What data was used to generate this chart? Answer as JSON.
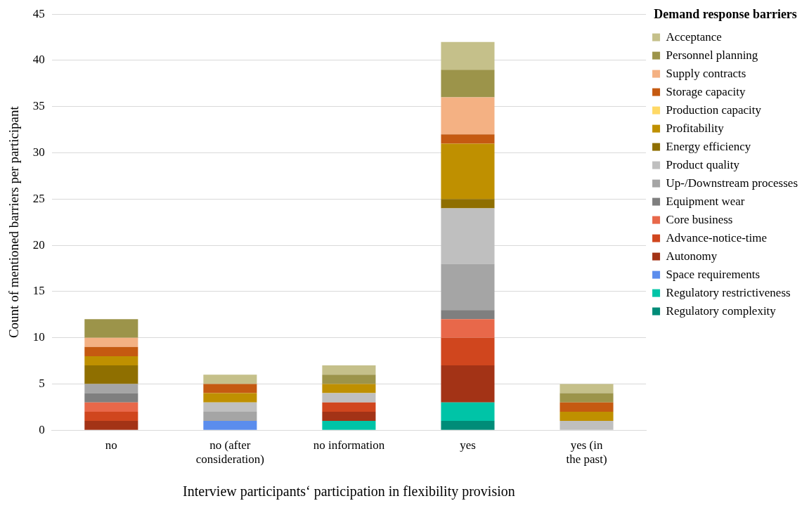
{
  "chart_data": {
    "type": "bar",
    "stacked": true,
    "xlabel": "Interview participants‘ participation in flexibility provision",
    "ylabel": "Count of mentioned barriers per participant",
    "legend_title": "Demand response barriers",
    "legend": "right",
    "grid": "y",
    "categories": [
      "no",
      "no (after consideration)",
      "no information",
      "yes",
      "yes (in the past)"
    ],
    "ylim": [
      0,
      45
    ],
    "yticks": [
      0,
      5,
      10,
      15,
      20,
      25,
      30,
      35,
      40,
      45
    ],
    "series": [
      {
        "name": "Regulatory complexity",
        "color": "#008c78",
        "values": [
          0,
          0,
          0,
          1,
          0
        ]
      },
      {
        "name": "Regulatory restrictiveness",
        "color": "#00c4a7",
        "values": [
          0,
          0,
          1,
          2,
          0
        ]
      },
      {
        "name": "Space requirements",
        "color": "#5b8ded",
        "values": [
          0,
          1,
          0,
          0,
          0
        ]
      },
      {
        "name": "Autonomy",
        "color": "#a33316",
        "values": [
          1,
          0,
          1,
          4,
          0
        ]
      },
      {
        "name": "Advance-notice-time",
        "color": "#d0461e",
        "values": [
          1,
          0,
          1,
          3,
          0
        ]
      },
      {
        "name": "Core business",
        "color": "#e8684a",
        "values": [
          1,
          0,
          0,
          2,
          0
        ]
      },
      {
        "name": "Equipment wear",
        "color": "#7f7f7f",
        "values": [
          1,
          0,
          0,
          1,
          0
        ]
      },
      {
        "name": "Up-/Downstream processes",
        "color": "#a5a5a5",
        "values": [
          1,
          1,
          0,
          5,
          0
        ]
      },
      {
        "name": "Product quality",
        "color": "#bfbfbf",
        "values": [
          0,
          1,
          1,
          6,
          1
        ]
      },
      {
        "name": "Energy efficiency",
        "color": "#8f6f00",
        "values": [
          2,
          0,
          0,
          1,
          0
        ]
      },
      {
        "name": "Profitability",
        "color": "#bf9000",
        "values": [
          1,
          1,
          1,
          6,
          1
        ]
      },
      {
        "name": "Production capacity",
        "color": "#ffd966",
        "values": [
          0,
          0,
          0,
          0,
          0
        ]
      },
      {
        "name": "Storage capacity",
        "color": "#c55a11",
        "values": [
          1,
          1,
          0,
          1,
          1
        ]
      },
      {
        "name": "Supply contracts",
        "color": "#f4b183",
        "values": [
          1,
          0,
          0,
          4,
          0
        ]
      },
      {
        "name": "Personnel planning",
        "color": "#9c944a",
        "values": [
          2,
          0,
          1,
          3,
          1
        ]
      },
      {
        "name": "Acceptance",
        "color": "#c5c08a",
        "values": [
          0,
          1,
          1,
          3,
          1
        ]
      }
    ]
  }
}
